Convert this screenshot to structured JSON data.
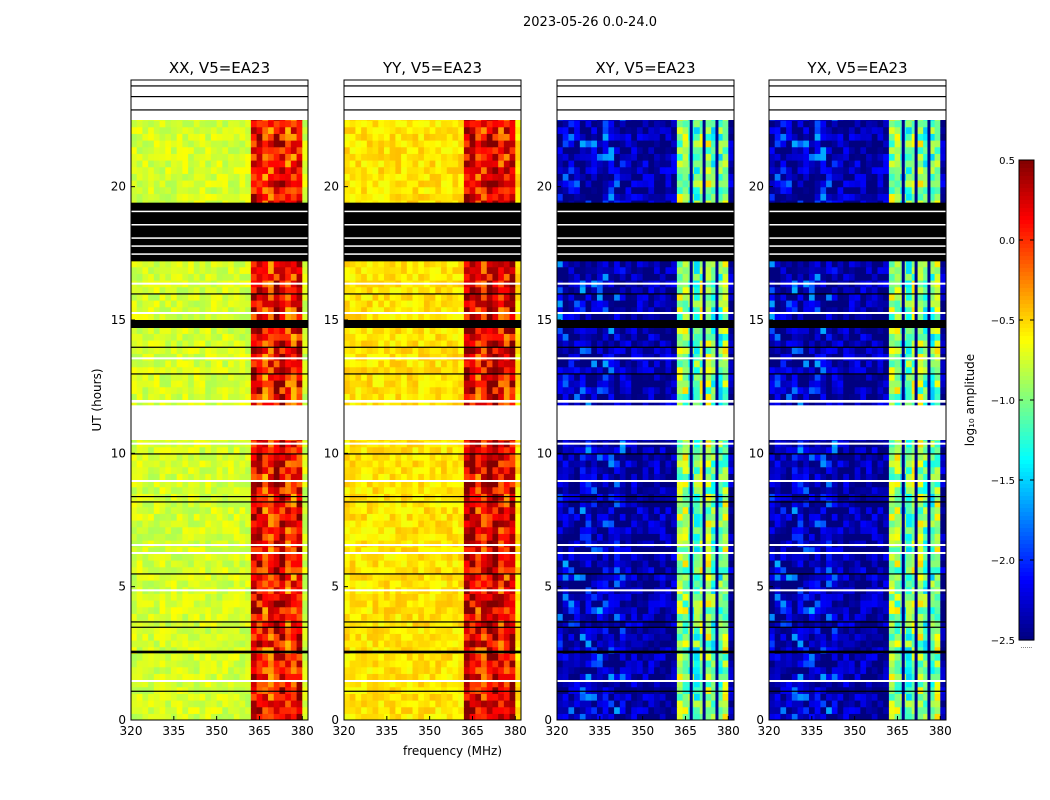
{
  "figure": {
    "suptitle": "2023-05-26 0.0-24.0",
    "colorbar_label": "log₁₀ amplitude",
    "colorbar_ticks": [
      "0.5",
      "0.0",
      "−0.5",
      "−1.0",
      "−1.5",
      "−2.0",
      "−2.5"
    ],
    "colorbar_minor_label": "......"
  },
  "chart_data": [
    {
      "type": "heatmap",
      "title": "XX, V5=EA23",
      "xlabel": "",
      "ylabel": "UT (hours)",
      "xlim": [
        320,
        382
      ],
      "ylim": [
        0,
        24
      ],
      "xticks": [
        320,
        335,
        350,
        365,
        380
      ],
      "xtick_labels": [
        "320",
        "335",
        "350",
        "365",
        "380"
      ],
      "yticks": [
        0,
        5,
        10,
        15,
        20
      ],
      "ytick_labels": [
        "0",
        "5",
        "10",
        "15",
        "20"
      ],
      "colorscale": "jet",
      "clim": [
        -2.5,
        0.5
      ],
      "base_value": -0.75,
      "band_value": 0.2,
      "band_freq_range": [
        362,
        379
      ]
    },
    {
      "type": "heatmap",
      "title": "YY, V5=EA23",
      "xlabel": "frequency (MHz)",
      "ylabel": "",
      "xlim": [
        320,
        382
      ],
      "ylim": [
        0,
        24
      ],
      "xticks": [
        320,
        335,
        350,
        365,
        380
      ],
      "xtick_labels": [
        "320",
        "335",
        "350",
        "365",
        "380"
      ],
      "yticks": [
        0,
        5,
        10,
        15,
        20
      ],
      "ytick_labels": [
        "0",
        "5",
        "10",
        "15",
        "20"
      ],
      "colorscale": "jet",
      "clim": [
        -2.5,
        0.5
      ],
      "base_value": -0.55,
      "band_value": 0.3,
      "band_freq_range": [
        362,
        379
      ]
    },
    {
      "type": "heatmap",
      "title": "XY, V5=EA23",
      "xlabel": "",
      "ylabel": "",
      "xlim": [
        320,
        382
      ],
      "ylim": [
        0,
        24
      ],
      "xticks": [
        320,
        335,
        350,
        365,
        380
      ],
      "xtick_labels": [
        "320",
        "335",
        "350",
        "365",
        "380"
      ],
      "yticks": [
        0,
        5,
        10,
        15,
        20
      ],
      "ytick_labels": [
        "0",
        "5",
        "10",
        "15",
        "20"
      ],
      "colorscale": "jet",
      "clim": [
        -2.5,
        0.5
      ],
      "base_value": -2.4,
      "band_value": -0.9,
      "band_freq_range": [
        362,
        379
      ]
    },
    {
      "type": "heatmap",
      "title": "YX, V5=EA23",
      "xlabel": "",
      "ylabel": "",
      "xlim": [
        320,
        382
      ],
      "ylim": [
        0,
        24
      ],
      "xticks": [
        320,
        335,
        350,
        365,
        380
      ],
      "xtick_labels": [
        "320",
        "335",
        "350",
        "365",
        "380"
      ],
      "yticks": [
        0,
        5,
        10,
        15,
        20
      ],
      "ytick_labels": [
        "0",
        "5",
        "10",
        "15",
        "20"
      ],
      "colorscale": "jet",
      "clim": [
        -2.5,
        0.5
      ],
      "base_value": -2.4,
      "band_value": -0.9,
      "band_freq_range": [
        362,
        379
      ]
    }
  ],
  "flagged_hours": {
    "blank": [
      [
        10.5,
        11.8
      ],
      [
        11.9,
        12.0
      ],
      [
        22.5,
        24.0
      ]
    ],
    "black": [
      [
        17.2,
        19.4
      ],
      [
        14.7,
        15.0
      ],
      [
        2.5,
        2.6
      ]
    ]
  }
}
